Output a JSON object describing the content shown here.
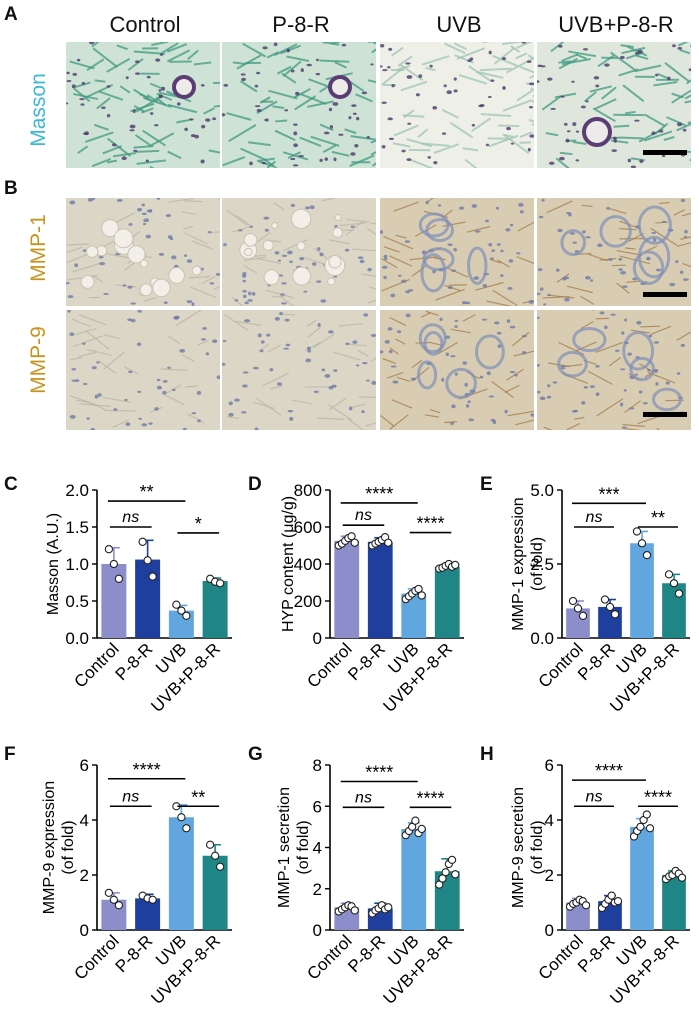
{
  "panels": {
    "A": "A",
    "B": "B",
    "C": "C",
    "D": "D",
    "E": "E",
    "F": "F",
    "G": "G",
    "H": "H"
  },
  "groups": [
    "Control",
    "P-8-R",
    "UVB",
    "UVB+P-8-R"
  ],
  "row_labels": {
    "masson": "Masson",
    "mmp1": "MMP-1",
    "mmp9": "MMP-9"
  },
  "colors": {
    "control": "#8c8ecb",
    "p8r": "#1f3f9e",
    "uvb": "#62a6df",
    "uvbp8r": "#1f8585",
    "masson_label": "#3ab8d8",
    "mmp_label": "#c8941e",
    "masson_stain": "#4aa58c",
    "ihc_bg": "#d9d2bf"
  },
  "chart_data": [
    {
      "panel": "C",
      "type": "bar",
      "categories": [
        "Control",
        "P-8-R",
        "UVB",
        "UVB+P-8-R"
      ],
      "values": [
        1.0,
        1.06,
        0.37,
        0.77
      ],
      "errors": [
        0.22,
        0.26,
        0.07,
        0.04
      ],
      "points": [
        [
          1.2,
          1.0,
          0.8
        ],
        [
          1.3,
          1.05,
          0.83
        ],
        [
          0.45,
          0.37,
          0.3
        ],
        [
          0.8,
          0.76,
          0.74
        ]
      ],
      "ylabel": "Masson (A.U.)",
      "ylim": [
        0,
        2.0
      ],
      "yticks": [
        "0.0",
        "0.5",
        "1.0",
        "1.5",
        "2.0"
      ],
      "brackets": [
        {
          "from": 0,
          "to": 2,
          "label": "**",
          "y": 1.85
        },
        {
          "from": 0,
          "to": 1,
          "label": "ns",
          "y": 1.5
        },
        {
          "from": 2,
          "to": 3,
          "label": "*",
          "y": 1.42
        }
      ]
    },
    {
      "panel": "D",
      "type": "bar",
      "categories": [
        "Control",
        "P-8-R",
        "UVB",
        "UVB+P-8-R"
      ],
      "values": [
        525,
        520,
        240,
        385
      ],
      "errors": [
        25,
        22,
        25,
        12
      ],
      "points": [
        [
          500,
          510,
          525,
          540,
          550,
          515
        ],
        [
          500,
          510,
          520,
          530,
          545,
          515
        ],
        [
          210,
          225,
          240,
          255,
          265,
          230
        ],
        [
          375,
          380,
          390,
          400,
          385,
          395
        ]
      ],
      "ylabel": "HYP content (μg/g)",
      "ylim": [
        0,
        800
      ],
      "yticks": [
        "0",
        "200",
        "400",
        "600",
        "800"
      ],
      "brackets": [
        {
          "from": 0,
          "to": 2,
          "label": "****",
          "y": 730
        },
        {
          "from": 0,
          "to": 1,
          "label": "ns",
          "y": 610
        },
        {
          "from": 2,
          "to": 3,
          "label": "****",
          "y": 570
        }
      ]
    },
    {
      "panel": "E",
      "type": "bar",
      "categories": [
        "Control",
        "P-8-R",
        "UVB",
        "UVB+P-8-R"
      ],
      "values": [
        1.0,
        1.05,
        3.2,
        1.85
      ],
      "errors": [
        0.25,
        0.25,
        0.4,
        0.3
      ],
      "points": [
        [
          1.25,
          1.0,
          0.75
        ],
        [
          1.3,
          1.05,
          0.8
        ],
        [
          3.6,
          3.2,
          2.8
        ],
        [
          2.15,
          1.85,
          1.5
        ]
      ],
      "ylabel": "MMP-1 expression (of fold)",
      "ylim": [
        0,
        5.0
      ],
      "yticks": [
        "0.0",
        "2.5",
        "5.0"
      ],
      "brackets": [
        {
          "from": 0,
          "to": 2,
          "label": "***",
          "y": 4.55
        },
        {
          "from": 0,
          "to": 1,
          "label": "ns",
          "y": 3.75
        },
        {
          "from": 2,
          "to": 3,
          "label": "**",
          "y": 3.75
        }
      ]
    },
    {
      "panel": "F",
      "type": "bar",
      "categories": [
        "Control",
        "P-8-R",
        "UVB",
        "UVB+P-8-R"
      ],
      "values": [
        1.1,
        1.15,
        4.1,
        2.7
      ],
      "errors": [
        0.25,
        0.15,
        0.45,
        0.4
      ],
      "points": [
        [
          1.35,
          1.1,
          0.9
        ],
        [
          1.25,
          1.15,
          1.1
        ],
        [
          4.5,
          4.1,
          3.7
        ],
        [
          3.1,
          2.7,
          2.3
        ]
      ],
      "ylabel": "MMP-9 expression (of fold)",
      "ylim": [
        0,
        6
      ],
      "yticks": [
        "0",
        "2",
        "4",
        "6"
      ],
      "brackets": [
        {
          "from": 0,
          "to": 2,
          "label": "****",
          "y": 5.5
        },
        {
          "from": 0,
          "to": 1,
          "label": "ns",
          "y": 4.5
        },
        {
          "from": 2,
          "to": 3,
          "label": "**",
          "y": 4.5
        }
      ]
    },
    {
      "panel": "G",
      "type": "bar",
      "categories": [
        "Control",
        "P-8-R",
        "UVB",
        "UVB+P-8-R"
      ],
      "values": [
        1.1,
        1.05,
        4.9,
        2.85
      ],
      "errors": [
        0.2,
        0.25,
        0.3,
        0.6
      ],
      "points": [
        [
          0.9,
          1.0,
          1.1,
          1.2,
          1.15,
          0.95
        ],
        [
          0.8,
          0.95,
          1.05,
          1.2,
          1.0,
          1.1
        ],
        [
          4.6,
          4.8,
          5.0,
          5.3,
          4.7,
          4.9
        ],
        [
          2.2,
          2.5,
          2.8,
          3.2,
          3.4,
          2.7
        ]
      ],
      "ylabel": "MMP-1 secretion (of fold)",
      "ylim": [
        0,
        8
      ],
      "yticks": [
        "0",
        "2",
        "4",
        "6",
        "8"
      ],
      "brackets": [
        {
          "from": 0,
          "to": 2,
          "label": "****",
          "y": 7.2
        },
        {
          "from": 0,
          "to": 1,
          "label": "ns",
          "y": 5.95
        },
        {
          "from": 2,
          "to": 3,
          "label": "****",
          "y": 5.95
        }
      ]
    },
    {
      "panel": "H",
      "type": "bar",
      "categories": [
        "Control",
        "P-8-R",
        "UVB",
        "UVB+P-8-R"
      ],
      "values": [
        1.0,
        1.05,
        3.75,
        2.0
      ],
      "errors": [
        0.15,
        0.2,
        0.3,
        0.15
      ],
      "points": [
        [
          0.85,
          0.95,
          1.0,
          1.1,
          1.05,
          0.9
        ],
        [
          0.8,
          0.95,
          1.1,
          1.25,
          1.0,
          1.05
        ],
        [
          3.4,
          3.6,
          3.75,
          4.0,
          4.2,
          3.7
        ],
        [
          1.85,
          1.95,
          2.0,
          2.15,
          2.05,
          1.9
        ]
      ],
      "ylabel": "MMP-9 secretion (of fold)",
      "ylim": [
        0,
        6
      ],
      "yticks": [
        "0",
        "2",
        "4",
        "6"
      ],
      "brackets": [
        {
          "from": 0,
          "to": 2,
          "label": "****",
          "y": 5.45
        },
        {
          "from": 0,
          "to": 1,
          "label": "ns",
          "y": 4.5
        },
        {
          "from": 2,
          "to": 3,
          "label": "****",
          "y": 4.5
        }
      ]
    }
  ]
}
